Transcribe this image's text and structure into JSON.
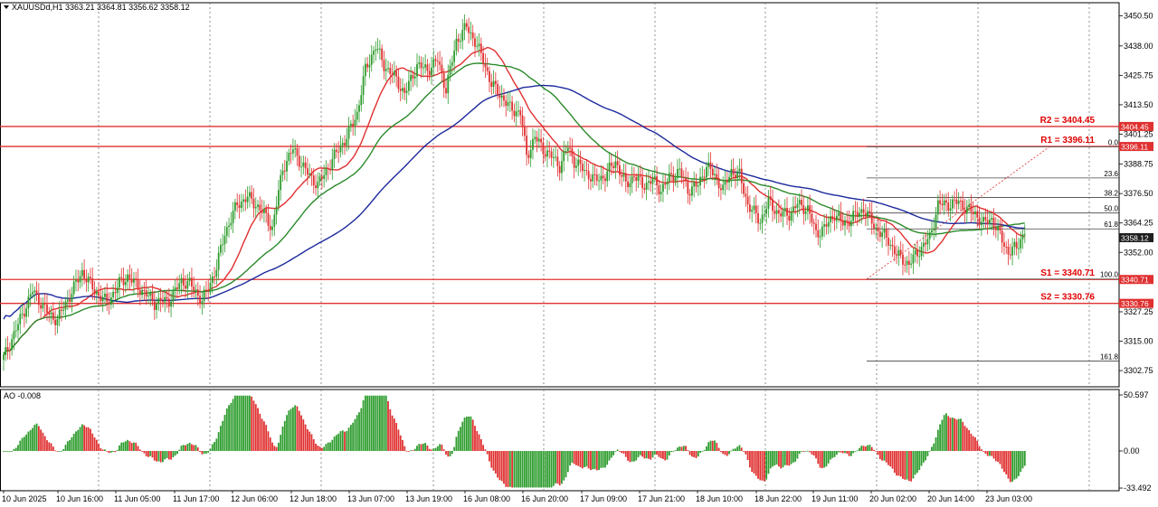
{
  "header": {
    "symbol_line": "XAUUSDd,H1  3363.21 3364.81 3356.62 3358.12"
  },
  "indicator": {
    "label": "AO -0.008"
  },
  "colors": {
    "bull": "#2e9c2e",
    "bear": "#e03030",
    "ma_red": "#e03030",
    "ma_green": "#2a8a2a",
    "ma_blue": "#1c2a9c",
    "level": "#e03030",
    "price_tag": "#202020"
  },
  "chart_data": {
    "type": "candlestick",
    "title": "XAUUSDd,H1",
    "price_axis": {
      "ylim": [
        3296,
        3456
      ],
      "ticks": [
        "3450.50",
        "3438.00",
        "3425.75",
        "3413.50",
        "3401.25",
        "3388.75",
        "3376.50",
        "3364.25",
        "3352.00",
        "3327.25",
        "3315.00",
        "3302.75"
      ]
    },
    "ao_axis": {
      "ylim": [
        -33.492,
        50.597
      ],
      "ticks": [
        "50.597",
        "0.00",
        "-33.492"
      ]
    },
    "time_labels": [
      "10 Jun 2025",
      "10 Jun 16:00",
      "11 Jun 05:00",
      "11 Jun 17:00",
      "12 Jun 06:00",
      "12 Jun 18:00",
      "13 Jun 07:00",
      "13 Jun 19:00",
      "16 Jun 08:00",
      "16 Jun 20:00",
      "17 Jun 09:00",
      "17 Jun 21:00",
      "18 Jun 10:00",
      "18 Jun 22:00",
      "19 Jun 11:00",
      "20 Jun 02:00",
      "20 Jun 14:00",
      "23 Jun 03:00"
    ],
    "levels": [
      {
        "name": "R2",
        "label": "R2 = 3404.45",
        "tag": "3404.45",
        "value": 3404.45
      },
      {
        "name": "R1",
        "label": "R1 = 3396.11",
        "tag": "3396.11",
        "value": 3396.11
      },
      {
        "name": "S1",
        "label": "S1 = 3340.71",
        "tag": "3340.71",
        "value": 3340.71
      },
      {
        "name": "S2",
        "label": "S2 = 3330.76",
        "tag": "3330.76",
        "value": 3330.76
      }
    ],
    "current_price": {
      "label": "3358.12",
      "value": 3358.12
    },
    "fibonacci": [
      {
        "label": "0.0",
        "value": 3396.0
      },
      {
        "label": "23.6",
        "value": 3383.0
      },
      {
        "label": "38.2",
        "value": 3374.9
      },
      {
        "label": "50.0",
        "value": 3368.4
      },
      {
        "label": "61.8",
        "value": 3361.8
      },
      {
        "label": "100.0",
        "value": 3340.9
      },
      {
        "label": "161.8",
        "value": 3306.7
      }
    ],
    "close_path": [
      [
        0,
        3308
      ],
      [
        6,
        3320
      ],
      [
        14,
        3336
      ],
      [
        22,
        3326
      ],
      [
        26,
        3324
      ],
      [
        32,
        3334
      ],
      [
        38,
        3344
      ],
      [
        44,
        3336
      ],
      [
        50,
        3331
      ],
      [
        56,
        3339
      ],
      [
        60,
        3342
      ],
      [
        67,
        3336
      ],
      [
        73,
        3331
      ],
      [
        80,
        3332
      ],
      [
        86,
        3340
      ],
      [
        90,
        3339
      ],
      [
        96,
        3332
      ],
      [
        99,
        3337
      ],
      [
        103,
        3346
      ],
      [
        107,
        3360
      ],
      [
        113,
        3372
      ],
      [
        118,
        3375
      ],
      [
        122,
        3372
      ],
      [
        126,
        3368
      ],
      [
        130,
        3362
      ],
      [
        135,
        3387
      ],
      [
        140,
        3395
      ],
      [
        146,
        3386
      ],
      [
        152,
        3380
      ],
      [
        156,
        3386
      ],
      [
        162,
        3395
      ],
      [
        166,
        3400
      ],
      [
        171,
        3410
      ],
      [
        175,
        3428
      ],
      [
        180,
        3438
      ],
      [
        184,
        3430
      ],
      [
        190,
        3424
      ],
      [
        194,
        3418
      ],
      [
        200,
        3430
      ],
      [
        205,
        3428
      ],
      [
        210,
        3432
      ],
      [
        214,
        3420
      ],
      [
        219,
        3440
      ],
      [
        224,
        3446
      ],
      [
        228,
        3440
      ],
      [
        232,
        3432
      ],
      [
        236,
        3422
      ],
      [
        240,
        3418
      ],
      [
        245,
        3412
      ],
      [
        250,
        3410
      ],
      [
        253,
        3392
      ],
      [
        257,
        3400
      ],
      [
        261,
        3395
      ],
      [
        265,
        3392
      ],
      [
        269,
        3388
      ],
      [
        273,
        3396
      ],
      [
        276,
        3390
      ],
      [
        281,
        3386
      ],
      [
        286,
        3382
      ],
      [
        291,
        3384
      ],
      [
        296,
        3390
      ],
      [
        301,
        3380
      ],
      [
        305,
        3384
      ],
      [
        309,
        3380
      ],
      [
        314,
        3382
      ],
      [
        318,
        3378
      ],
      [
        322,
        3383
      ],
      [
        327,
        3386
      ],
      [
        331,
        3378
      ],
      [
        336,
        3380
      ],
      [
        340,
        3388
      ],
      [
        344,
        3384
      ],
      [
        348,
        3378
      ],
      [
        352,
        3386
      ],
      [
        356,
        3384
      ],
      [
        360,
        3372
      ],
      [
        366,
        3365
      ],
      [
        370,
        3373
      ],
      [
        375,
        3368
      ],
      [
        380,
        3368
      ],
      [
        384,
        3372
      ],
      [
        389,
        3370
      ],
      [
        393,
        3360
      ],
      [
        397,
        3362
      ],
      [
        402,
        3368
      ],
      [
        406,
        3364
      ],
      [
        410,
        3366
      ],
      [
        416,
        3370
      ],
      [
        422,
        3362
      ],
      [
        428,
        3357
      ],
      [
        432,
        3351
      ],
      [
        438,
        3347
      ],
      [
        443,
        3353
      ],
      [
        448,
        3358
      ],
      [
        452,
        3372
      ],
      [
        457,
        3372
      ],
      [
        462,
        3373
      ],
      [
        466,
        3370
      ],
      [
        470,
        3368
      ],
      [
        474,
        3364
      ],
      [
        478,
        3366
      ],
      [
        482,
        3359
      ],
      [
        486,
        3352
      ],
      [
        490,
        3354
      ],
      [
        494,
        3361
      ]
    ]
  }
}
